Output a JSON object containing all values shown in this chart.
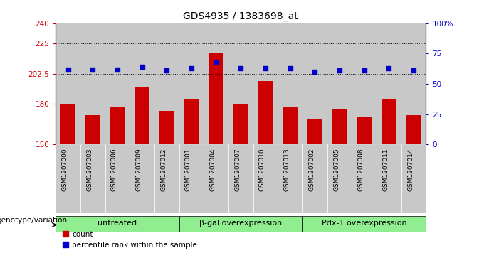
{
  "title": "GDS4935 / 1383698_at",
  "samples": [
    "GSM1207000",
    "GSM1207003",
    "GSM1207006",
    "GSM1207009",
    "GSM1207012",
    "GSM1207001",
    "GSM1207004",
    "GSM1207007",
    "GSM1207010",
    "GSM1207013",
    "GSM1207002",
    "GSM1207005",
    "GSM1207008",
    "GSM1207011",
    "GSM1207014"
  ],
  "bar_values": [
    180,
    172,
    178,
    193,
    175,
    184,
    218,
    180,
    197,
    178,
    169,
    176,
    170,
    184,
    172
  ],
  "percentile_values": [
    62,
    62,
    62,
    64,
    61,
    63,
    68,
    63,
    63,
    63,
    60,
    61,
    61,
    63,
    61
  ],
  "bar_color": "#cc0000",
  "dot_color": "#0000cc",
  "ylim_left": [
    150,
    240
  ],
  "ylim_right": [
    0,
    100
  ],
  "yticks_left": [
    150,
    180,
    202.5,
    225,
    240
  ],
  "yticks_right": [
    0,
    25,
    50,
    75,
    100
  ],
  "ytick_labels_left": [
    "150",
    "180",
    "202.5",
    "225",
    "240"
  ],
  "ytick_labels_right": [
    "0",
    "25",
    "50",
    "75",
    "100%"
  ],
  "hlines": [
    180,
    202.5,
    225
  ],
  "groups": [
    {
      "label": "untreated",
      "start": 0,
      "end": 4
    },
    {
      "label": "β-gal overexpression",
      "start": 5,
      "end": 9
    },
    {
      "label": "Pdx-1 overexpression",
      "start": 10,
      "end": 14
    }
  ],
  "group_color": "#90ee90",
  "bar_bg_color": "#c8c8c8",
  "plot_bg_color": "#ffffff",
  "xlabel_left": "count",
  "xlabel_right": "percentile rank within the sample",
  "genotype_label": "genotype/variation",
  "bar_width": 0.6,
  "left_axis_color": "#cc0000",
  "right_axis_color": "#0000cc",
  "title_fontsize": 10,
  "tick_label_fontsize": 7.5,
  "sample_fontsize": 6.5,
  "group_fontsize": 8,
  "legend_fontsize": 7.5
}
